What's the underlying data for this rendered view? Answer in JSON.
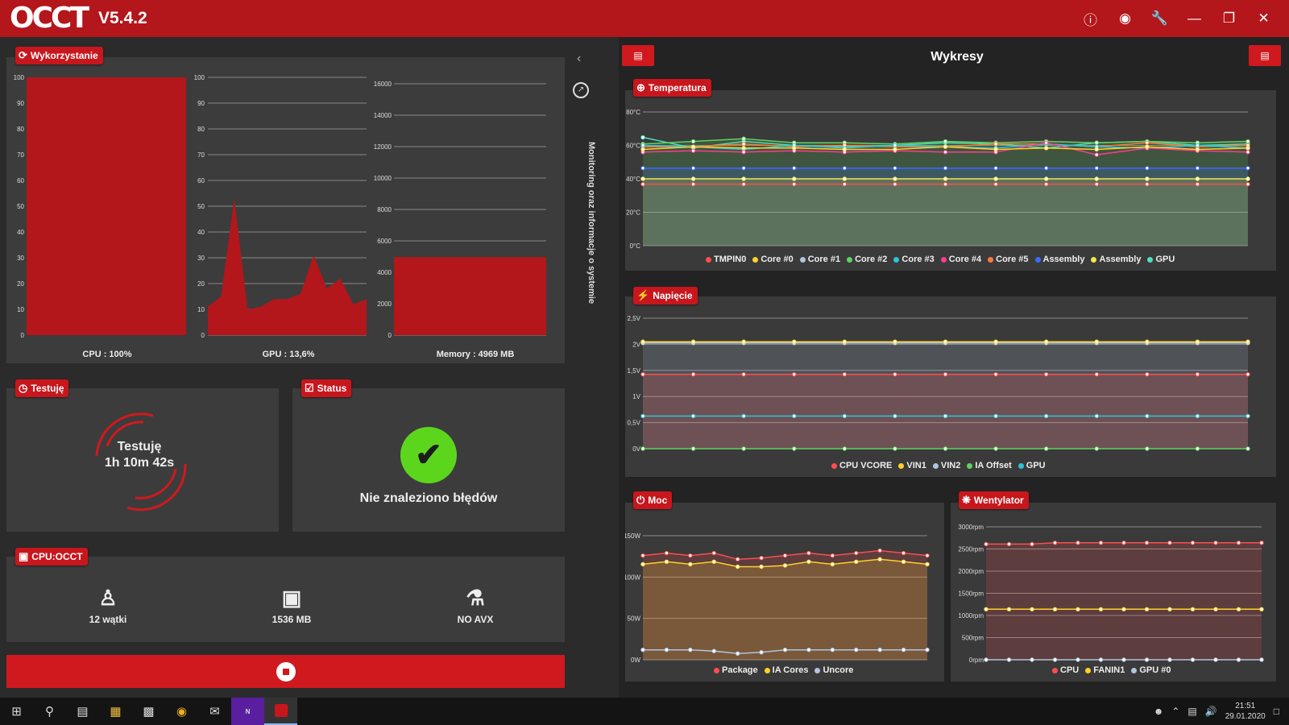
{
  "app": {
    "logo": "OCCT",
    "version": "V5.4.2"
  },
  "titlebar_icons": [
    "info-icon",
    "camera-icon",
    "wrench-icon",
    "minimize-icon",
    "restore-icon",
    "close-icon"
  ],
  "usage": {
    "tag": "Wykorzystanie",
    "cpu_label": "CPU : 100%",
    "gpu_label": "GPU : 13,6%",
    "mem_label": "Memory : 4969 MB",
    "cpu_ticks": [
      "100",
      "90",
      "80",
      "70",
      "60",
      "50",
      "40",
      "30",
      "20",
      "10",
      "0"
    ],
    "gpu_ticks": [
      "100",
      "90",
      "80",
      "70",
      "60",
      "50",
      "40",
      "30",
      "20",
      "10",
      "0"
    ],
    "mem_ticks": [
      "16000",
      "14000",
      "12000",
      "10000",
      "8000",
      "6000",
      "4000",
      "2000",
      "0"
    ],
    "cpu_value": 100,
    "gpu_values": [
      11,
      15,
      53,
      10,
      11,
      14,
      14,
      16,
      31,
      18,
      22,
      12,
      14
    ],
    "mem_value": 4969,
    "mem_max": 16000
  },
  "testing": {
    "tag": "Testuję",
    "line1": "Testuję",
    "line2": "1h 10m 42s"
  },
  "status": {
    "tag": "Status",
    "message": "Nie znaleziono błędów"
  },
  "cpuocct": {
    "tag": "CPU:OCCT",
    "threads": "12 wątki",
    "memory": "1536 MB",
    "avx": "NO AVX"
  },
  "sidebar": {
    "label": "Monitoring oraz informacje o systemie"
  },
  "charts_panel": {
    "title": "Wykresy"
  },
  "temperature": {
    "tag": "Temperatura",
    "ticks": [
      "80°C",
      "60°C",
      "40°C",
      "20°C",
      "0°C"
    ],
    "legend": [
      {
        "name": "TMPIN0",
        "color": "#ff4d4d"
      },
      {
        "name": "Core #0",
        "color": "#ffd12a"
      },
      {
        "name": "Core #1",
        "color": "#b0c4de"
      },
      {
        "name": "Core #2",
        "color": "#5fd35f"
      },
      {
        "name": "Core #3",
        "color": "#2ec4d6"
      },
      {
        "name": "Core #4",
        "color": "#ff3b8e"
      },
      {
        "name": "Core #5",
        "color": "#ff7a3a"
      },
      {
        "name": "Assembly",
        "color": "#3a6bff"
      },
      {
        "name": "Assembly",
        "color": "#f0e84a"
      },
      {
        "name": "GPU",
        "color": "#4de0c8"
      }
    ]
  },
  "voltage": {
    "tag": "Napięcie",
    "ticks": [
      "2,5V",
      "2V",
      "1,5V",
      "1V",
      "0,5V",
      "0V"
    ],
    "legend": [
      {
        "name": "CPU VCORE",
        "color": "#ff4d4d"
      },
      {
        "name": "VIN1",
        "color": "#ffd12a"
      },
      {
        "name": "VIN2",
        "color": "#b0c4de"
      },
      {
        "name": "IA Offset",
        "color": "#5fd35f"
      },
      {
        "name": "GPU",
        "color": "#2ec4d6"
      }
    ]
  },
  "power": {
    "tag": "Moc",
    "ticks": [
      "150W",
      "100W",
      "50W",
      "0W"
    ],
    "legend": [
      {
        "name": "Package",
        "color": "#ff4d4d"
      },
      {
        "name": "IA Cores",
        "color": "#ffd12a"
      },
      {
        "name": "Uncore",
        "color": "#b0c4de"
      }
    ]
  },
  "fan": {
    "tag": "Wentylator",
    "ticks": [
      "3000rpm",
      "2500rpm",
      "2000rpm",
      "1500rpm",
      "1000rpm",
      "500rpm",
      "0rpm"
    ],
    "legend": [
      {
        "name": "CPU",
        "color": "#ff4d4d"
      },
      {
        "name": "FANIN1",
        "color": "#ffd12a"
      },
      {
        "name": "GPU #0",
        "color": "#b0c4de"
      }
    ]
  },
  "taskbar": {
    "time": "21:51",
    "date": "29.01.2020"
  }
}
